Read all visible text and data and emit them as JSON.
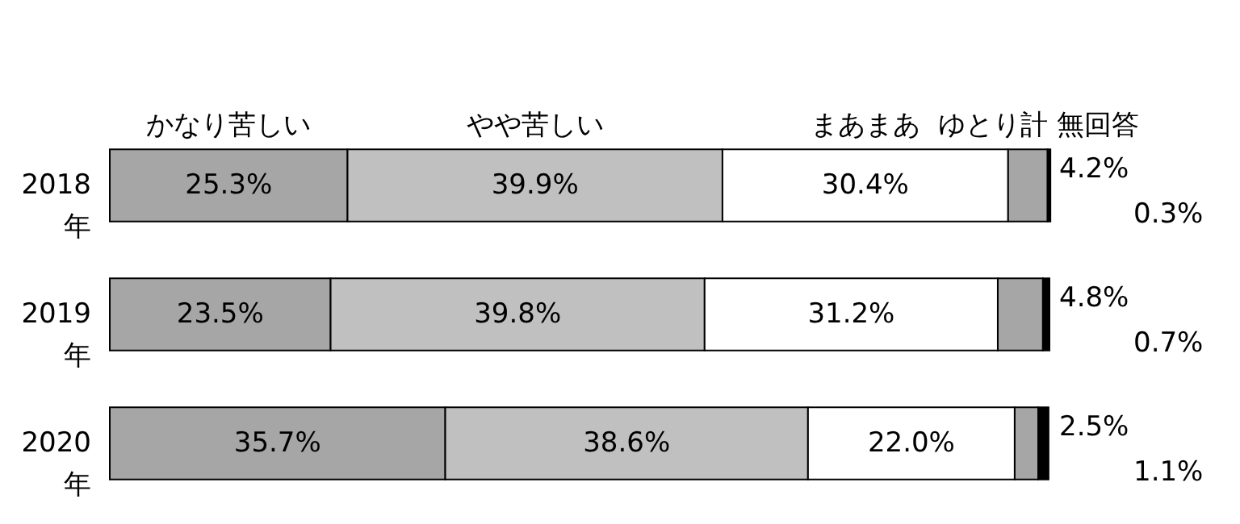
{
  "chart_data": {
    "type": "bar",
    "orientation": "horizontal",
    "stacked": true,
    "categories": [
      "2018\n年",
      "2019\n年",
      "2020\n年"
    ],
    "series": [
      {
        "name": "かなり苦しい",
        "color": "#a6a6a6",
        "values": [
          25.3,
          23.5,
          35.7
        ],
        "value_labels": [
          "25.3%",
          "23.5%",
          "35.7%"
        ]
      },
      {
        "name": "やや苦しい",
        "color": "#c0c0c0",
        "values": [
          39.9,
          39.8,
          38.6
        ],
        "value_labels": [
          "39.9%",
          "39.8%",
          "38.6%"
        ]
      },
      {
        "name": "まあまあ",
        "color": "#ffffff",
        "values": [
          30.4,
          31.2,
          22.0
        ],
        "value_labels": [
          "30.4%",
          "31.2%",
          "22.0%"
        ]
      },
      {
        "name": "ゆとり計",
        "color": "#a6a6a6",
        "values": [
          4.2,
          4.8,
          2.5
        ],
        "value_labels": [
          "4.2%",
          "4.8%",
          "2.5%"
        ]
      },
      {
        "name": "無回答",
        "color": "#000000",
        "values": [
          0.3,
          0.7,
          1.1
        ],
        "value_labels": [
          "0.3%",
          "0.7%",
          "1.1%"
        ]
      }
    ],
    "xlim": [
      0,
      100
    ],
    "tick_labels": "y",
    "grid": false,
    "legend": false
  }
}
